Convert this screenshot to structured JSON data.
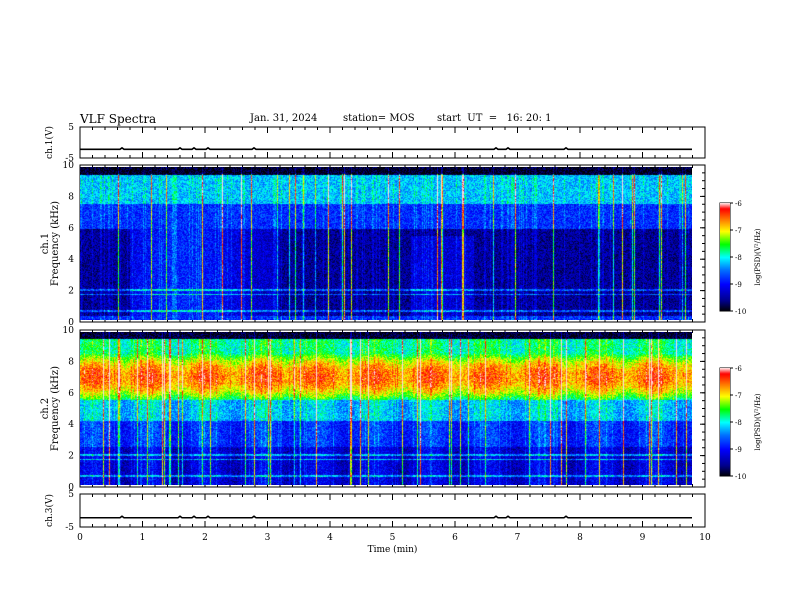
{
  "header": {
    "title": "VLF Spectra",
    "date": "Jan. 31, 2024",
    "station": "station= MOS",
    "start": "start  UT  =   16: 20: 1"
  },
  "chart_data": [
    {
      "type": "line",
      "panel": "ch1-waveform",
      "ylabel": "ch.1(V)",
      "ylim": [
        -5,
        5
      ],
      "yticks": [
        5,
        -5
      ],
      "xlim": [
        0,
        10
      ],
      "series": [
        {
          "y_level": -2.2
        }
      ]
    },
    {
      "type": "heatmap",
      "panel": "ch1-spectrogram",
      "ylabel": "ch.1\nFrequency (kHz)",
      "ylabel_line1": "ch.1",
      "ylabel_line2": "Frequency (kHz)",
      "ylim": [
        0,
        10
      ],
      "yticks": [
        0,
        2,
        4,
        6,
        8,
        10
      ],
      "xlim": [
        0,
        9.8
      ],
      "colorbar": {
        "label": "log(PSD)(V²/Hz)",
        "ticks": [
          -6,
          -7,
          -8,
          -9,
          -10
        ],
        "range": [
          -10,
          -6
        ]
      }
    },
    {
      "type": "heatmap",
      "panel": "ch2-spectrogram",
      "ylabel_line1": "ch.2",
      "ylabel_line2": "Frequency (kHz)",
      "ylim": [
        0,
        10
      ],
      "yticks": [
        0,
        2,
        4,
        6,
        8,
        10
      ],
      "xlim": [
        0,
        9.8
      ],
      "colorbar": {
        "label": "log(PSD)(V²/Hz)",
        "ticks": [
          -6,
          -7,
          -8,
          -9,
          -10
        ],
        "range": [
          -10,
          -6
        ]
      }
    },
    {
      "type": "line",
      "panel": "ch3-waveform",
      "ylabel": "ch.3(V)",
      "ylim": [
        -5,
        5
      ],
      "yticks": [
        5,
        -5
      ],
      "xlim": [
        0,
        10
      ],
      "xlabel": "Time  (min)",
      "xticks": [
        0,
        1,
        2,
        3,
        4,
        5,
        6,
        7,
        8,
        9,
        10
      ],
      "series": [
        {
          "y_level": -2.2
        }
      ]
    }
  ],
  "colors": {
    "scale": [
      "#000080",
      "#0000ff",
      "#0080ff",
      "#00ffff",
      "#00ff00",
      "#ffff00",
      "#ff8000",
      "#ff0000",
      "#ffffff"
    ]
  }
}
